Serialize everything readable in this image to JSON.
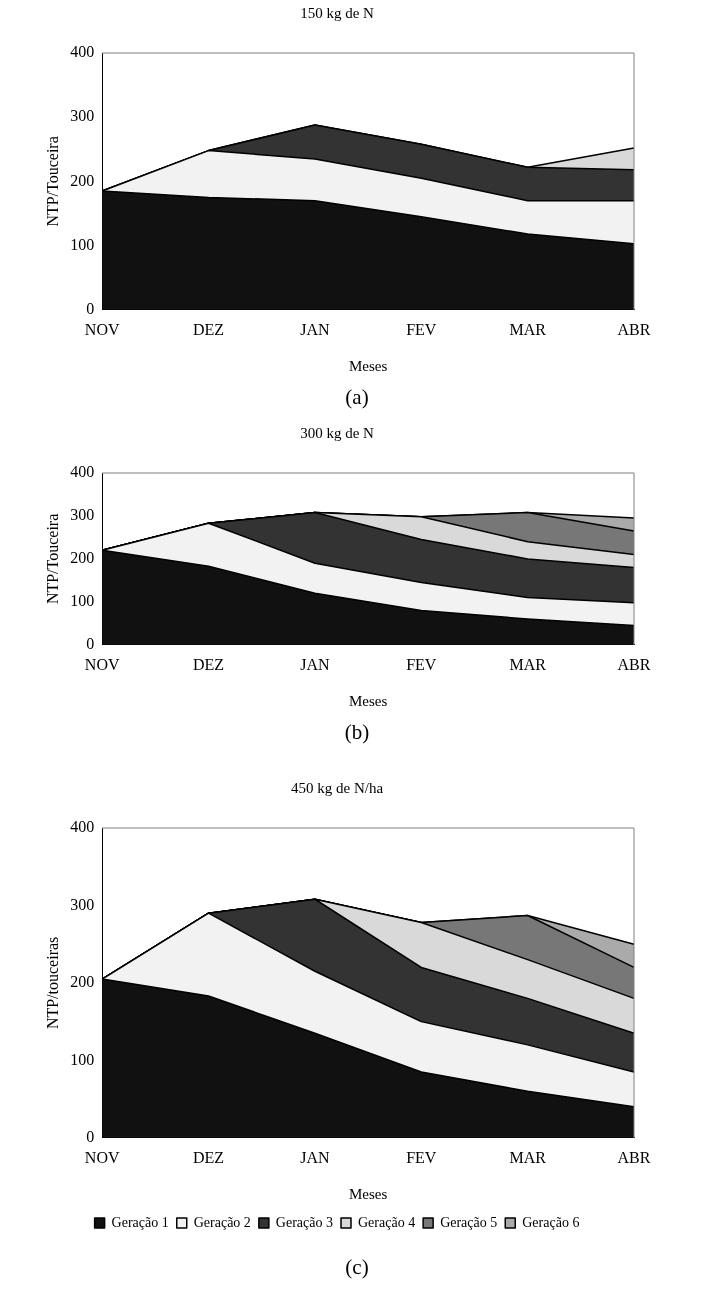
{
  "chart_data": [
    {
      "type": "area",
      "title": "150 kg de N",
      "xlabel": "Meses",
      "ylabel": "NTP/Touceira",
      "annotations": [
        "(a)"
      ],
      "stacked": true,
      "categories": [
        "NOV",
        "DEZ",
        "JAN",
        "FEV",
        "MAR",
        "ABR"
      ],
      "ylim": [
        0,
        400
      ],
      "yticks": [
        0,
        100,
        200,
        300,
        400
      ],
      "series": [
        {
          "color": "#111111",
          "values": [
            185,
            175,
            170,
            145,
            118,
            103
          ]
        },
        {
          "color": "#f2f2f2",
          "values": [
            0,
            73,
            65,
            60,
            52,
            67
          ]
        },
        {
          "color": "#333333",
          "values": [
            0,
            0,
            53,
            53,
            52,
            48
          ]
        },
        {
          "color": "#d9d9d9",
          "values": [
            0,
            0,
            0,
            0,
            0,
            34
          ]
        }
      ]
    },
    {
      "type": "area",
      "title": "300 kg de N",
      "xlabel": "Meses",
      "ylabel": "NTP/Touceira",
      "annotations": [
        "(b)"
      ],
      "stacked": true,
      "categories": [
        "NOV",
        "DEZ",
        "JAN",
        "FEV",
        "MAR",
        "ABR"
      ],
      "ylim": [
        0,
        400
      ],
      "yticks": [
        0,
        100,
        200,
        300,
        400
      ],
      "series": [
        {
          "color": "#111111",
          "values": [
            220,
            183,
            120,
            80,
            60,
            45
          ]
        },
        {
          "color": "#f2f2f2",
          "values": [
            0,
            100,
            70,
            65,
            50,
            53
          ]
        },
        {
          "color": "#333333",
          "values": [
            0,
            0,
            118,
            100,
            90,
            82
          ]
        },
        {
          "color": "#d9d9d9",
          "values": [
            0,
            0,
            0,
            53,
            40,
            30
          ]
        },
        {
          "color": "#777777",
          "values": [
            0,
            0,
            0,
            0,
            68,
            55
          ]
        },
        {
          "color": "#aaaaaa",
          "values": [
            0,
            0,
            0,
            0,
            0,
            30
          ]
        }
      ]
    },
    {
      "type": "area",
      "title": "450 kg de N/ha",
      "xlabel": "Meses",
      "ylabel": "NTP/touceiras",
      "annotations": [
        "(c)"
      ],
      "stacked": true,
      "legend": "bottom",
      "categories": [
        "NOV",
        "DEZ",
        "JAN",
        "FEV",
        "MAR",
        "ABR"
      ],
      "ylim": [
        0,
        400
      ],
      "yticks": [
        0,
        100,
        200,
        300,
        400
      ],
      "series": [
        {
          "name": "Geração 1",
          "color": "#111111",
          "values": [
            205,
            183,
            135,
            85,
            60,
            40
          ]
        },
        {
          "name": "Geração 2",
          "color": "#f2f2f2",
          "values": [
            0,
            107,
            80,
            65,
            60,
            45
          ]
        },
        {
          "name": "Geração 3",
          "color": "#333333",
          "values": [
            0,
            0,
            93,
            70,
            60,
            50
          ]
        },
        {
          "name": "Geração 4",
          "color": "#d9d9d9",
          "values": [
            0,
            0,
            0,
            58,
            50,
            45
          ]
        },
        {
          "name": "Geração 5",
          "color": "#777777",
          "values": [
            0,
            0,
            0,
            0,
            57,
            40
          ]
        },
        {
          "name": "Geração 6",
          "color": "#aaaaaa",
          "values": [
            0,
            0,
            0,
            0,
            0,
            30
          ]
        }
      ]
    }
  ]
}
